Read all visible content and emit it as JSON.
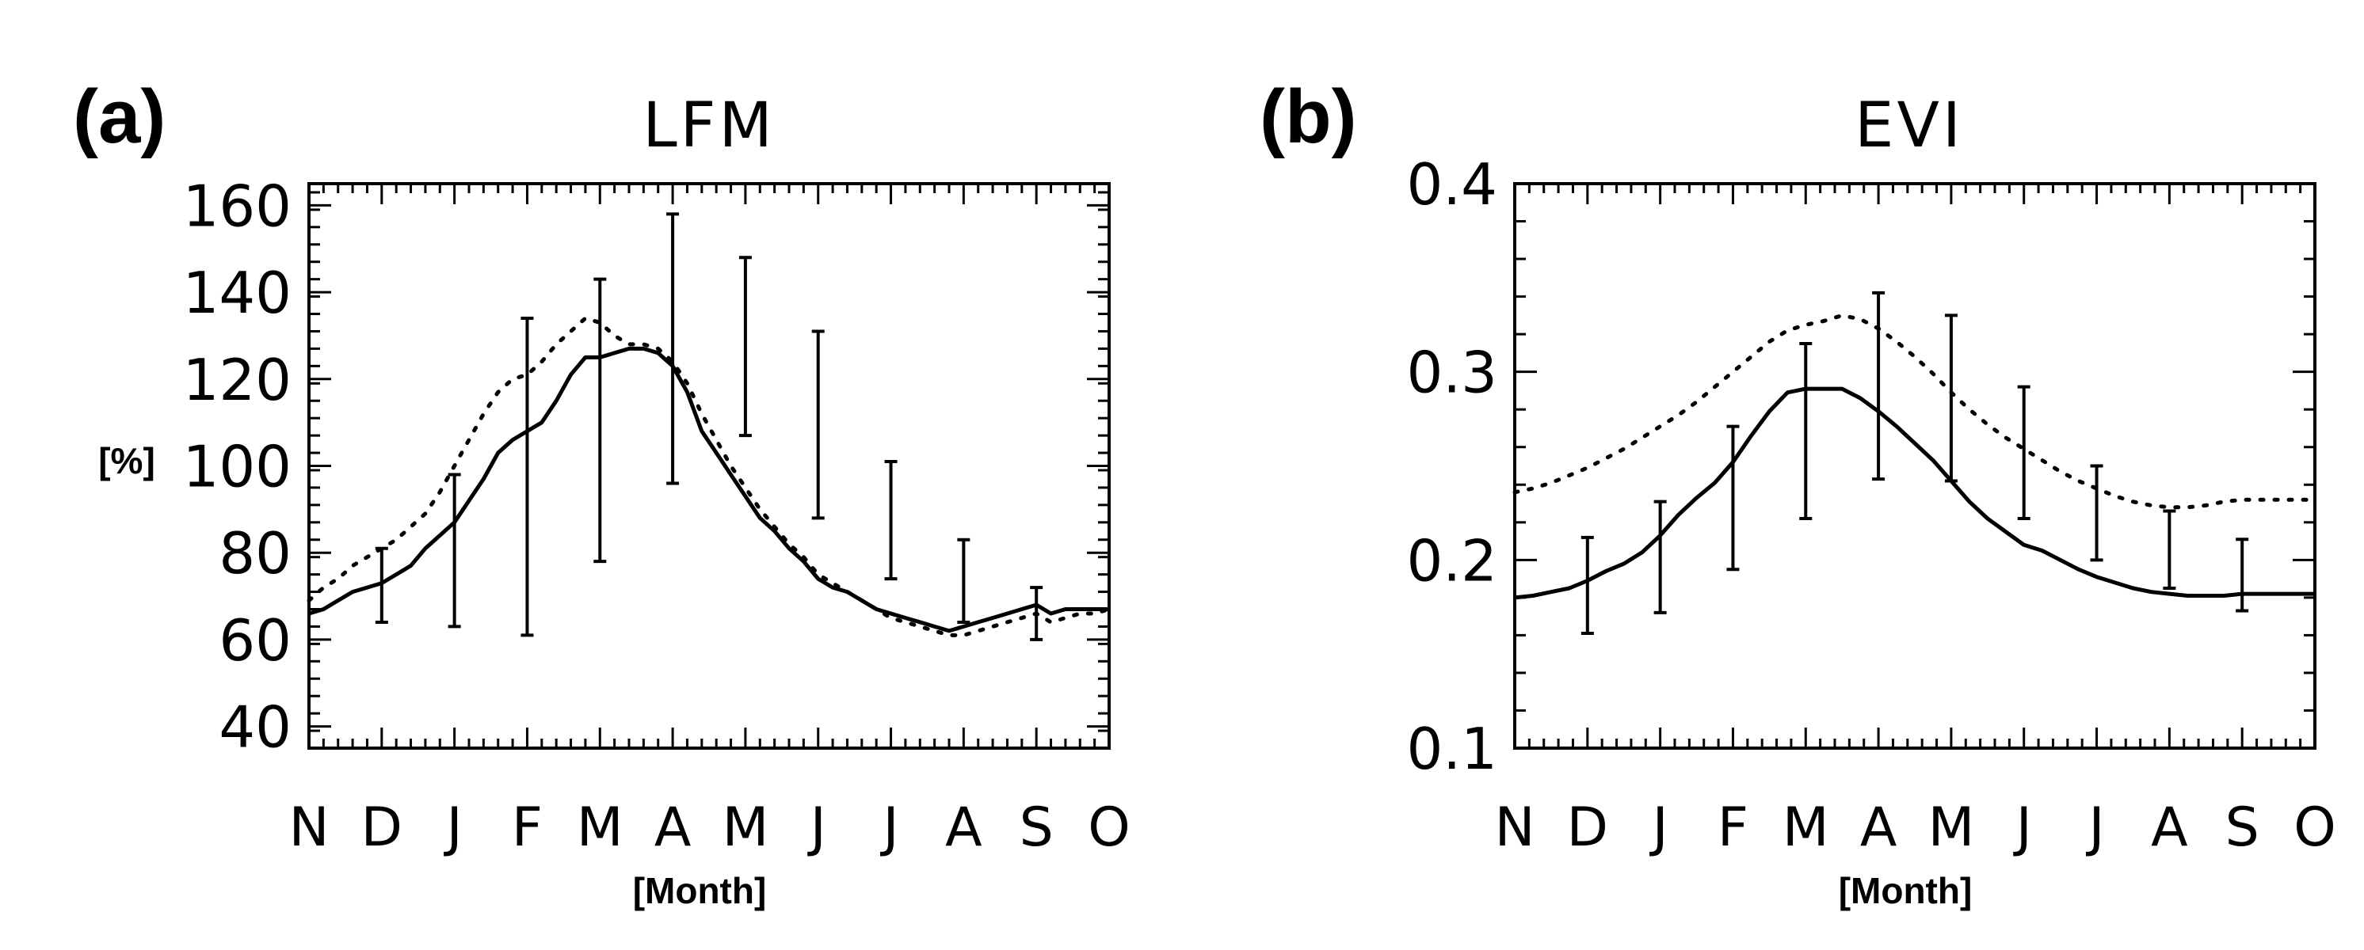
{
  "chart_data": [
    {
      "type": "line",
      "panel_label": "(a)",
      "title": "LFM",
      "xlabel": "[Month]",
      "ylabel": "[%]",
      "categories": [
        "N",
        "D",
        "J",
        "F",
        "M",
        "A",
        "M",
        "J",
        "J",
        "A",
        "S",
        "O"
      ],
      "ylim": [
        35,
        165
      ],
      "yticks": [
        40,
        60,
        80,
        100,
        120,
        140,
        160
      ],
      "yticklabels": [
        "40",
        "60",
        "80",
        "100",
        "120",
        "140",
        "160"
      ],
      "series": [
        {
          "name": "solid",
          "style": "solid",
          "x": [
            0,
            0.2,
            0.4,
            0.6,
            0.8,
            1.0,
            1.2,
            1.4,
            1.6,
            1.8,
            2.0,
            2.2,
            2.4,
            2.6,
            2.8,
            3.0,
            3.2,
            3.4,
            3.6,
            3.8,
            4.0,
            4.2,
            4.4,
            4.6,
            4.8,
            5.0,
            5.2,
            5.4,
            5.6,
            5.8,
            6.0,
            6.2,
            6.4,
            6.6,
            6.8,
            7.0,
            7.2,
            7.4,
            7.6,
            7.8,
            8.0,
            8.2,
            8.4,
            8.6,
            8.8,
            9.0,
            9.2,
            9.4,
            9.6,
            9.8,
            10.0,
            10.2,
            10.4,
            10.6,
            10.8,
            11.0
          ],
          "values": [
            66,
            67,
            69,
            71,
            72,
            73,
            75,
            77,
            81,
            84,
            87,
            92,
            97,
            103,
            106,
            108,
            110,
            115,
            121,
            125,
            125,
            126,
            127,
            127,
            126,
            123,
            117,
            108,
            103,
            98,
            93,
            88,
            85,
            81,
            78,
            74,
            72,
            71,
            69,
            67,
            66,
            65,
            64,
            63,
            62,
            63,
            64,
            65,
            66,
            67,
            68,
            66,
            67,
            67,
            67,
            67
          ]
        },
        {
          "name": "dotted",
          "style": "dotted",
          "x": [
            0,
            0.2,
            0.4,
            0.6,
            0.8,
            1.0,
            1.2,
            1.4,
            1.6,
            1.8,
            2.0,
            2.2,
            2.4,
            2.6,
            2.8,
            3.0,
            3.2,
            3.4,
            3.6,
            3.8,
            4.0,
            4.2,
            4.4,
            4.6,
            4.8,
            5.0,
            5.2,
            5.4,
            5.6,
            5.8,
            6.0,
            6.2,
            6.4,
            6.6,
            6.8,
            7.0,
            7.2,
            7.4,
            7.6,
            7.8,
            8.0,
            8.2,
            8.4,
            8.6,
            8.8,
            9.0,
            9.2,
            9.4,
            9.6,
            9.8,
            10.0,
            10.2,
            10.4,
            10.6,
            10.8,
            11.0
          ],
          "values": [
            69,
            72,
            74,
            77,
            79,
            81,
            83,
            86,
            89,
            94,
            100,
            106,
            112,
            117,
            120,
            121,
            124,
            128,
            131,
            134,
            133,
            130,
            128,
            128,
            127,
            124,
            119,
            112,
            106,
            100,
            95,
            90,
            86,
            82,
            79,
            75,
            73,
            71,
            69,
            67,
            65,
            64,
            63,
            62,
            61,
            61,
            62,
            63,
            64,
            65,
            66,
            64,
            65,
            66,
            66,
            67
          ]
        }
      ],
      "error_bars": {
        "x": [
          1,
          2,
          3,
          4,
          5,
          6,
          7,
          8,
          9,
          10
        ],
        "low": [
          64,
          63,
          61,
          78,
          96,
          107,
          88,
          74,
          64,
          60
        ],
        "high": [
          81,
          98,
          134,
          143,
          158,
          148,
          131,
          101,
          83,
          72
        ]
      }
    },
    {
      "type": "line",
      "panel_label": "(b)",
      "title": "EVI",
      "xlabel": "[Month]",
      "ylabel": "",
      "categories": [
        "N",
        "D",
        "J",
        "F",
        "M",
        "A",
        "M",
        "J",
        "J",
        "A",
        "S",
        "O"
      ],
      "ylim": [
        0.1,
        0.4
      ],
      "yticks": [
        0.1,
        0.2,
        0.3,
        0.4
      ],
      "yticklabels": [
        "0.1",
        "0.2",
        "0.3",
        "0.4"
      ],
      "series": [
        {
          "name": "solid",
          "style": "solid",
          "x": [
            0,
            0.25,
            0.5,
            0.75,
            1.0,
            1.25,
            1.5,
            1.75,
            2.0,
            2.25,
            2.5,
            2.75,
            3.0,
            3.25,
            3.5,
            3.75,
            4.0,
            4.25,
            4.5,
            4.75,
            5.0,
            5.25,
            5.5,
            5.75,
            6.0,
            6.25,
            6.5,
            6.75,
            7.0,
            7.25,
            7.5,
            7.75,
            8.0,
            8.25,
            8.5,
            8.75,
            9.0,
            9.25,
            9.5,
            9.75,
            10.0,
            10.25,
            10.5,
            10.75,
            11.0
          ],
          "values": [
            0.18,
            0.181,
            0.183,
            0.185,
            0.189,
            0.194,
            0.198,
            0.204,
            0.213,
            0.224,
            0.233,
            0.241,
            0.252,
            0.266,
            0.279,
            0.289,
            0.291,
            0.291,
            0.291,
            0.286,
            0.279,
            0.271,
            0.262,
            0.253,
            0.242,
            0.231,
            0.222,
            0.215,
            0.208,
            0.205,
            0.2,
            0.195,
            0.191,
            0.188,
            0.185,
            0.183,
            0.182,
            0.181,
            0.181,
            0.181,
            0.182,
            0.182,
            0.182,
            0.182,
            0.182
          ]
        },
        {
          "name": "dotted",
          "style": "dotted",
          "x": [
            0,
            0.25,
            0.5,
            0.75,
            1.0,
            1.25,
            1.5,
            1.75,
            2.0,
            2.25,
            2.5,
            2.75,
            3.0,
            3.25,
            3.5,
            3.75,
            4.0,
            4.25,
            4.5,
            4.75,
            5.0,
            5.25,
            5.5,
            5.75,
            6.0,
            6.25,
            6.5,
            6.75,
            7.0,
            7.25,
            7.5,
            7.75,
            8.0,
            8.25,
            8.5,
            8.75,
            9.0,
            9.25,
            9.5,
            9.75,
            10.0,
            10.25,
            10.5,
            10.75,
            11.0
          ],
          "values": [
            0.236,
            0.238,
            0.241,
            0.245,
            0.249,
            0.254,
            0.259,
            0.265,
            0.271,
            0.277,
            0.284,
            0.292,
            0.3,
            0.308,
            0.316,
            0.322,
            0.325,
            0.327,
            0.33,
            0.328,
            0.323,
            0.316,
            0.308,
            0.299,
            0.289,
            0.28,
            0.272,
            0.265,
            0.259,
            0.253,
            0.247,
            0.242,
            0.238,
            0.234,
            0.231,
            0.229,
            0.228,
            0.228,
            0.229,
            0.231,
            0.232,
            0.232,
            0.232,
            0.232,
            0.232
          ]
        }
      ],
      "error_bars": {
        "x": [
          1,
          2,
          3,
          4,
          5,
          6,
          7,
          8,
          9,
          10
        ],
        "low": [
          0.161,
          0.172,
          0.195,
          0.222,
          0.243,
          0.242,
          0.222,
          0.2,
          0.185,
          0.173
        ],
        "high": [
          0.212,
          0.231,
          0.271,
          0.315,
          0.342,
          0.33,
          0.292,
          0.25,
          0.226,
          0.211
        ]
      }
    }
  ]
}
